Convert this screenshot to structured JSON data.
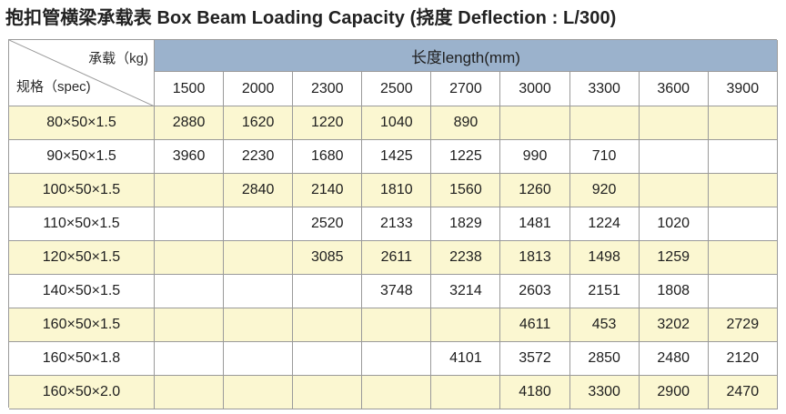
{
  "title": "抱扣管横梁承载表 Box Beam Loading Capacity (挠度 Deflection : L/300)",
  "corner": {
    "load_label": "承载（kg)",
    "spec_label": "规格（spec)"
  },
  "length_header": "长度length(mm)",
  "lengths": [
    "1500",
    "2000",
    "2300",
    "2500",
    "2700",
    "3000",
    "3300",
    "3600",
    "3900"
  ],
  "rows": [
    {
      "spec": "80×50×1.5",
      "values": [
        "2880",
        "1620",
        "1220",
        "1040",
        "890",
        "",
        "",
        "",
        ""
      ]
    },
    {
      "spec": "90×50×1.5",
      "values": [
        "3960",
        "2230",
        "1680",
        "1425",
        "1225",
        "990",
        "710",
        "",
        ""
      ]
    },
    {
      "spec": "100×50×1.5",
      "values": [
        "",
        "2840",
        "2140",
        "1810",
        "1560",
        "1260",
        "920",
        "",
        ""
      ]
    },
    {
      "spec": "110×50×1.5",
      "values": [
        "",
        "",
        "2520",
        "2133",
        "1829",
        "1481",
        "1224",
        "1020",
        ""
      ]
    },
    {
      "spec": "120×50×1.5",
      "values": [
        "",
        "",
        "3085",
        "2611",
        "2238",
        "1813",
        "1498",
        "1259",
        ""
      ]
    },
    {
      "spec": "140×50×1.5",
      "values": [
        "",
        "",
        "",
        "3748",
        "3214",
        "2603",
        "2151",
        "1808",
        ""
      ]
    },
    {
      "spec": "160×50×1.5",
      "values": [
        "",
        "",
        "",
        "",
        "",
        "4611",
        "453",
        "3202",
        "2729"
      ]
    },
    {
      "spec": "160×50×1.8",
      "values": [
        "",
        "",
        "",
        "",
        "4101",
        "3572",
        "2850",
        "2480",
        "2120"
      ]
    },
    {
      "spec": "160×50×2.0",
      "values": [
        "",
        "",
        "",
        "",
        "",
        "4180",
        "3300",
        "2900",
        "2470"
      ]
    }
  ],
  "colors": {
    "header_blue": "#9bb2cc",
    "row_yellow": "#fbf7d1",
    "row_white": "#ffffff",
    "grid_line": "#9a9a9a"
  }
}
